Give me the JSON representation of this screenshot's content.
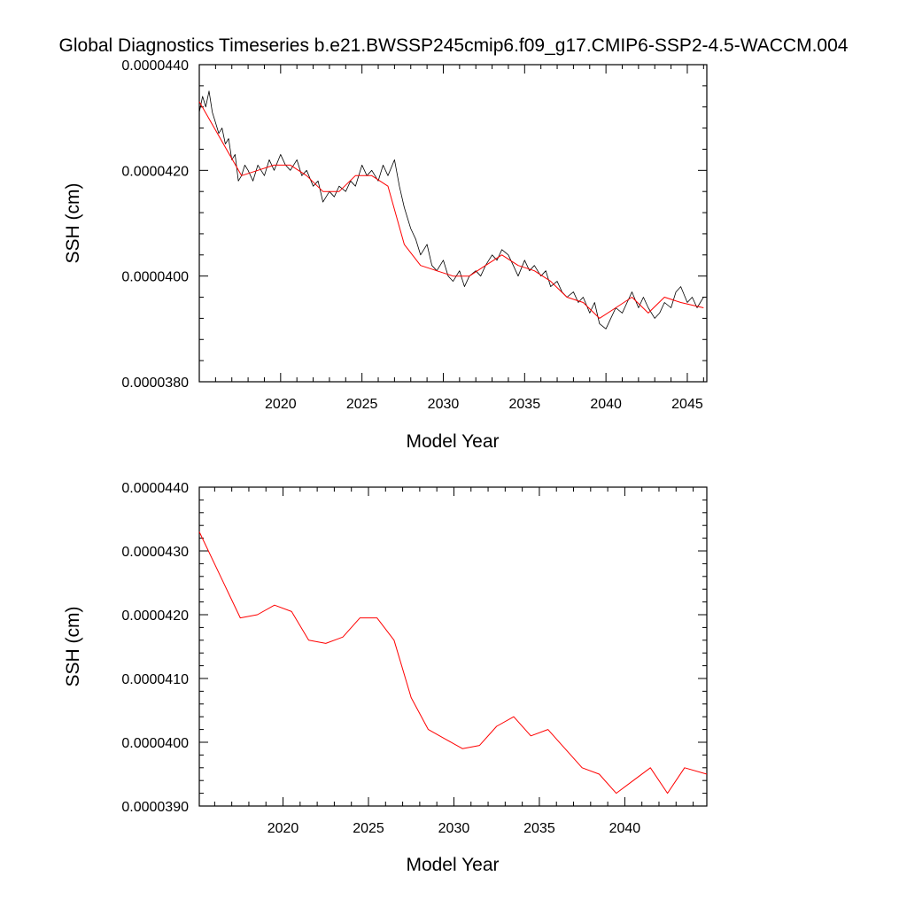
{
  "title": "Global Diagnostics Timeseries b.e21.BWSSP245cmip6.f09_g17.CMIP6-SSP2-4.5-WACCM.004",
  "colors": {
    "monthly": "#000000",
    "annual": "#ff0000",
    "axis": "#000000"
  },
  "chart_data": [
    {
      "type": "line",
      "xlabel": "Model Year",
      "ylabel": "SSH (cm)",
      "xlim": [
        2015,
        2046.2
      ],
      "ylim": [
        3.8e-05,
        4.4e-05
      ],
      "x_ticks": [
        "2020",
        "2025",
        "2030",
        "2035",
        "2040",
        "2045"
      ],
      "y_ticks": [
        "0.0000380",
        "0.0000400",
        "0.0000420",
        "0.0000440"
      ],
      "series": [
        {
          "style": "monthly",
          "x": [
            2015.0,
            2015.2,
            2015.4,
            2015.6,
            2015.8,
            2016.0,
            2016.2,
            2016.4,
            2016.6,
            2016.8,
            2017.0,
            2017.2,
            2017.4,
            2017.6,
            2017.8,
            2018.0,
            2018.3,
            2018.6,
            2019.0,
            2019.3,
            2019.6,
            2020.0,
            2020.3,
            2020.6,
            2021.0,
            2021.3,
            2021.6,
            2022.0,
            2022.3,
            2022.6,
            2023.0,
            2023.3,
            2023.6,
            2024.0,
            2024.3,
            2024.6,
            2025.0,
            2025.3,
            2025.6,
            2026.0,
            2026.3,
            2026.6,
            2027.0,
            2027.3,
            2027.6,
            2028.0,
            2028.3,
            2028.6,
            2029.0,
            2029.3,
            2029.6,
            2030.0,
            2030.3,
            2030.6,
            2031.0,
            2031.3,
            2031.6,
            2032.0,
            2032.3,
            2032.6,
            2033.0,
            2033.3,
            2033.6,
            2034.0,
            2034.3,
            2034.6,
            2035.0,
            2035.3,
            2035.6,
            2036.0,
            2036.3,
            2036.6,
            2037.0,
            2037.3,
            2037.6,
            2038.0,
            2038.3,
            2038.6,
            2039.0,
            2039.3,
            2039.6,
            2040.0,
            2040.3,
            2040.6,
            2041.0,
            2041.3,
            2041.6,
            2042.0,
            2042.3,
            2042.6,
            2043.0,
            2043.3,
            2043.6,
            2044.0,
            2044.3,
            2044.6,
            2045.0,
            2045.3,
            2045.6,
            2046.0
          ],
          "y": [
            4.31e-05,
            4.34e-05,
            4.32e-05,
            4.35e-05,
            4.31e-05,
            4.29e-05,
            4.27e-05,
            4.28e-05,
            4.25e-05,
            4.26e-05,
            4.22e-05,
            4.23e-05,
            4.18e-05,
            4.19e-05,
            4.21e-05,
            4.2e-05,
            4.18e-05,
            4.21e-05,
            4.19e-05,
            4.22e-05,
            4.2e-05,
            4.23e-05,
            4.21e-05,
            4.2e-05,
            4.22e-05,
            4.19e-05,
            4.2e-05,
            4.17e-05,
            4.18e-05,
            4.14e-05,
            4.16e-05,
            4.15e-05,
            4.17e-05,
            4.16e-05,
            4.18e-05,
            4.17e-05,
            4.21e-05,
            4.19e-05,
            4.2e-05,
            4.18e-05,
            4.21e-05,
            4.19e-05,
            4.22e-05,
            4.17e-05,
            4.13e-05,
            4.09e-05,
            4.07e-05,
            4.04e-05,
            4.06e-05,
            4.02e-05,
            4.01e-05,
            4.03e-05,
            4e-05,
            3.99e-05,
            4.01e-05,
            3.98e-05,
            4e-05,
            4.01e-05,
            4e-05,
            4.02e-05,
            4.04e-05,
            4.03e-05,
            4.05e-05,
            4.04e-05,
            4.02e-05,
            4e-05,
            4.03e-05,
            4.01e-05,
            4.02e-05,
            4e-05,
            4.01e-05,
            3.98e-05,
            3.99e-05,
            3.97e-05,
            3.96e-05,
            3.97e-05,
            3.95e-05,
            3.96e-05,
            3.93e-05,
            3.95e-05,
            3.91e-05,
            3.9e-05,
            3.92e-05,
            3.94e-05,
            3.93e-05,
            3.95e-05,
            3.97e-05,
            3.94e-05,
            3.96e-05,
            3.94e-05,
            3.92e-05,
            3.93e-05,
            3.95e-05,
            3.94e-05,
            3.97e-05,
            3.98e-05,
            3.95e-05,
            3.96e-05,
            3.94e-05,
            3.96e-05
          ]
        },
        {
          "style": "annual",
          "x": [
            2015.0,
            2017.6,
            2018.6,
            2019.6,
            2020.6,
            2021.6,
            2022.6,
            2023.6,
            2024.6,
            2025.6,
            2026.6,
            2027.6,
            2028.6,
            2029.6,
            2030.6,
            2031.6,
            2032.6,
            2033.6,
            2034.6,
            2035.6,
            2036.6,
            2037.6,
            2038.6,
            2039.6,
            2040.6,
            2041.6,
            2042.6,
            2043.6,
            2044.6,
            2046.0
          ],
          "y": [
            4.33e-05,
            4.19e-05,
            4.2e-05,
            4.21e-05,
            4.21e-05,
            4.19e-05,
            4.16e-05,
            4.16e-05,
            4.19e-05,
            4.19e-05,
            4.17e-05,
            4.06e-05,
            4.02e-05,
            4.01e-05,
            4e-05,
            4e-05,
            4.02e-05,
            4.04e-05,
            4.02e-05,
            4.01e-05,
            3.99e-05,
            3.96e-05,
            3.95e-05,
            3.92e-05,
            3.94e-05,
            3.96e-05,
            3.93e-05,
            3.96e-05,
            3.95e-05,
            3.94e-05
          ]
        }
      ]
    },
    {
      "type": "line",
      "xlabel": "Model Year",
      "ylabel": "SSH (cm)",
      "xlim": [
        2015.1,
        2044.8
      ],
      "ylim": [
        3.9e-05,
        4.4e-05
      ],
      "x_ticks": [
        "2020",
        "2025",
        "2030",
        "2035",
        "2040"
      ],
      "y_ticks": [
        "0.0000390",
        "0.0000400",
        "0.0000410",
        "0.0000420",
        "0.0000430",
        "0.0000440"
      ],
      "series": [
        {
          "style": "annual",
          "x": [
            2015.1,
            2017.5,
            2018.5,
            2019.5,
            2020.5,
            2021.5,
            2022.5,
            2023.5,
            2024.5,
            2025.5,
            2026.5,
            2027.5,
            2028.5,
            2029.5,
            2030.5,
            2031.5,
            2032.5,
            2033.5,
            2034.5,
            2035.5,
            2036.5,
            2037.5,
            2038.5,
            2039.5,
            2040.5,
            2041.5,
            2042.5,
            2043.5,
            2044.8
          ],
          "y": [
            4.33e-05,
            4.195e-05,
            4.2e-05,
            4.215e-05,
            4.205e-05,
            4.16e-05,
            4.155e-05,
            4.165e-05,
            4.195e-05,
            4.195e-05,
            4.16e-05,
            4.07e-05,
            4.02e-05,
            4.005e-05,
            3.99e-05,
            3.995e-05,
            4.025e-05,
            4.04e-05,
            4.01e-05,
            4.02e-05,
            3.99e-05,
            3.96e-05,
            3.95e-05,
            3.92e-05,
            3.94e-05,
            3.96e-05,
            3.92e-05,
            3.96e-05,
            3.95e-05
          ]
        }
      ]
    }
  ]
}
